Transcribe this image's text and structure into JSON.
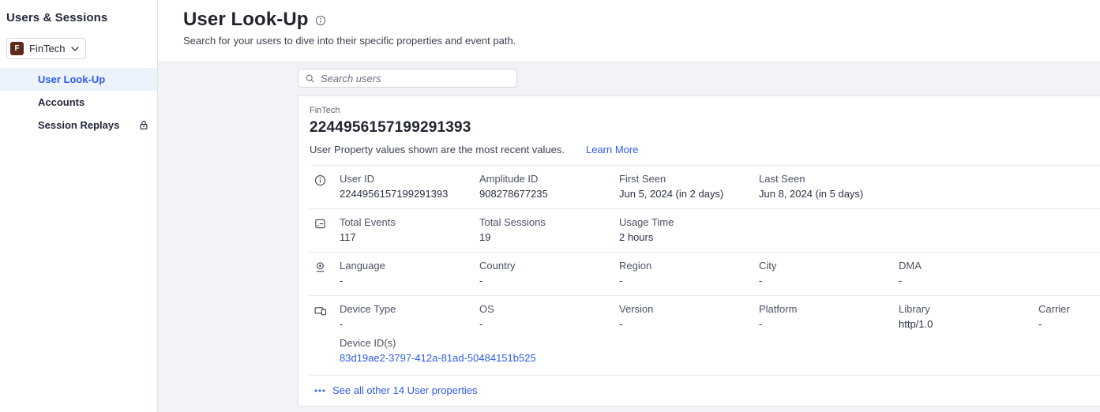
{
  "sidebar": {
    "title": "Users & Sessions",
    "project": {
      "initial": "F",
      "name": "FinTech"
    },
    "items": [
      {
        "label": "User Look-Up",
        "active": true,
        "locked": false
      },
      {
        "label": "Accounts",
        "active": false,
        "locked": false
      },
      {
        "label": "Session Replays",
        "active": false,
        "locked": true
      }
    ]
  },
  "header": {
    "title": "User Look-Up",
    "subtitle": "Search for your users to dive into their specific properties and event path."
  },
  "search": {
    "placeholder": "Search users",
    "icon": "search-icon"
  },
  "user_card": {
    "project_label": "FinTech",
    "user_id": "2244956157199291393",
    "note": "User Property values shown are the most recent values.",
    "learn_more_label": "Learn More",
    "property_rows": [
      {
        "icon": "info-icon",
        "fields": [
          {
            "label": "User ID",
            "value": "2244956157199291393"
          },
          {
            "label": "Amplitude ID",
            "value": "908278677235"
          },
          {
            "label": "First Seen",
            "value": "Jun 5, 2024 (in 2 days)"
          },
          {
            "label": "Last Seen",
            "value": "Jun 8, 2024 (in 5 days)"
          }
        ]
      },
      {
        "icon": "events-icon",
        "fields": [
          {
            "label": "Total Events",
            "value": "117"
          },
          {
            "label": "Total Sessions",
            "value": "19"
          },
          {
            "label": "Usage Time",
            "value": "2 hours"
          }
        ]
      },
      {
        "icon": "location-icon",
        "fields": [
          {
            "label": "Language",
            "value": "-"
          },
          {
            "label": "Country",
            "value": "-"
          },
          {
            "label": "Region",
            "value": "-"
          },
          {
            "label": "City",
            "value": "-"
          },
          {
            "label": "DMA",
            "value": "-"
          }
        ]
      },
      {
        "icon": "device-icon",
        "fields": [
          {
            "label": "Device Type",
            "value": "-"
          },
          {
            "label": "OS",
            "value": "-"
          },
          {
            "label": "Version",
            "value": "-"
          },
          {
            "label": "Platform",
            "value": "-"
          },
          {
            "label": "Library",
            "value": "http/1.0"
          },
          {
            "label": "Carrier",
            "value": "-"
          }
        ],
        "device_ids": {
          "label": "Device ID(s)",
          "ids": [
            "83d19ae2-3797-412a-81ad-50484151b525"
          ]
        }
      }
    ],
    "see_all_label": "See all other 14 User properties",
    "see_all_icon": "ellipsis-icon"
  },
  "colors": {
    "accent_blue": "#2e5bf0",
    "active_nav_bg": "#edf3fd",
    "content_bg": "#f2f3f6",
    "project_avatar_bg": "#5c2a1a",
    "card_border": "#e2e4e9",
    "text_primary": "#24273a",
    "text_muted": "#5d6370"
  }
}
